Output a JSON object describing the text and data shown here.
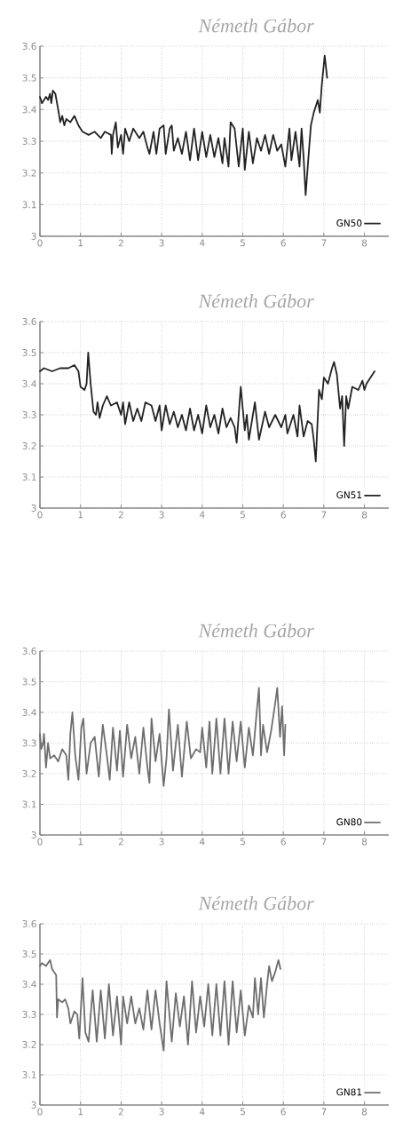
{
  "chart_data": [
    {
      "type": "line",
      "title": "Németh Gábor",
      "xlim": [
        0,
        8.6
      ],
      "ylim": [
        3,
        3.6
      ],
      "xticks": [
        0,
        1,
        2,
        3,
        4,
        5,
        6,
        7,
        8
      ],
      "yticks": [
        3,
        3.1,
        3.2,
        3.3,
        3.4,
        3.5,
        3.6
      ],
      "grid": true,
      "legend": "bottom right",
      "marker": "none",
      "x": [
        0,
        0.05,
        0.1,
        0.15,
        0.2,
        0.25,
        0.28,
        0.32,
        0.38,
        0.45,
        0.5,
        0.55,
        0.6,
        0.65,
        0.75,
        0.85,
        0.95,
        1.05,
        1.2,
        1.35,
        1.5,
        1.6,
        1.75,
        1.77,
        1.8,
        1.87,
        1.92,
        2.0,
        2.05,
        2.1,
        2.2,
        2.3,
        2.45,
        2.55,
        2.65,
        2.7,
        2.8,
        2.87,
        2.95,
        3.05,
        3.1,
        3.2,
        3.25,
        3.3,
        3.4,
        3.5,
        3.6,
        3.7,
        3.8,
        3.9,
        4.0,
        4.1,
        4.2,
        4.3,
        4.4,
        4.5,
        4.55,
        4.65,
        4.7,
        4.8,
        4.9,
        5.0,
        5.05,
        5.15,
        5.25,
        5.35,
        5.45,
        5.55,
        5.65,
        5.75,
        5.85,
        5.95,
        6.05,
        6.15,
        6.2,
        6.3,
        6.4,
        6.45,
        6.5,
        6.55,
        6.62,
        6.68,
        6.75,
        6.85,
        6.9,
        6.95,
        7.02,
        7.08
      ],
      "series": [
        {
          "name": "GN50",
          "color": "#222222",
          "values": [
            3.44,
            3.42,
            3.43,
            3.44,
            3.43,
            3.45,
            3.42,
            3.46,
            3.45,
            3.4,
            3.36,
            3.38,
            3.35,
            3.37,
            3.36,
            3.38,
            3.35,
            3.33,
            3.32,
            3.33,
            3.31,
            3.33,
            3.32,
            3.26,
            3.32,
            3.36,
            3.28,
            3.32,
            3.26,
            3.34,
            3.3,
            3.34,
            3.31,
            3.33,
            3.28,
            3.26,
            3.33,
            3.26,
            3.34,
            3.35,
            3.26,
            3.34,
            3.35,
            3.27,
            3.31,
            3.26,
            3.33,
            3.24,
            3.34,
            3.24,
            3.33,
            3.25,
            3.32,
            3.25,
            3.31,
            3.23,
            3.31,
            3.22,
            3.36,
            3.34,
            3.22,
            3.34,
            3.21,
            3.33,
            3.23,
            3.31,
            3.27,
            3.32,
            3.26,
            3.32,
            3.27,
            3.29,
            3.22,
            3.34,
            3.24,
            3.33,
            3.22,
            3.34,
            3.25,
            3.13,
            3.25,
            3.35,
            3.39,
            3.43,
            3.39,
            3.48,
            3.57,
            3.5
          ]
        }
      ]
    },
    {
      "type": "line",
      "title": "Németh Gábor",
      "xlim": [
        0,
        8.6
      ],
      "ylim": [
        3,
        3.6
      ],
      "xticks": [
        0,
        1,
        2,
        3,
        4,
        5,
        6,
        7,
        8
      ],
      "yticks": [
        3,
        3.1,
        3.2,
        3.3,
        3.4,
        3.5,
        3.6
      ],
      "grid": true,
      "legend": "bottom right",
      "marker": "none",
      "x": [
        0,
        0.1,
        0.3,
        0.5,
        0.7,
        0.85,
        0.95,
        1.0,
        1.1,
        1.15,
        1.19,
        1.25,
        1.32,
        1.38,
        1.42,
        1.47,
        1.55,
        1.65,
        1.75,
        1.9,
        2.0,
        2.05,
        2.1,
        2.2,
        2.3,
        2.4,
        2.5,
        2.6,
        2.75,
        2.85,
        2.95,
        3.0,
        3.1,
        3.2,
        3.3,
        3.4,
        3.5,
        3.6,
        3.7,
        3.8,
        3.9,
        4.0,
        4.1,
        4.2,
        4.3,
        4.4,
        4.5,
        4.6,
        4.7,
        4.8,
        4.85,
        4.95,
        5.05,
        5.1,
        5.15,
        5.3,
        5.4,
        5.55,
        5.65,
        5.8,
        5.95,
        6.05,
        6.1,
        6.25,
        6.35,
        6.4,
        6.5,
        6.6,
        6.7,
        6.75,
        6.8,
        6.88,
        6.95,
        7.0,
        7.1,
        7.2,
        7.25,
        7.32,
        7.4,
        7.45,
        7.5,
        7.55,
        7.6,
        7.7,
        7.85,
        7.95,
        8.0,
        8.05,
        8.25
      ],
      "series": [
        {
          "name": "GN51",
          "color": "#222222",
          "values": [
            3.44,
            3.45,
            3.44,
            3.45,
            3.45,
            3.46,
            3.44,
            3.39,
            3.38,
            3.4,
            3.5,
            3.4,
            3.31,
            3.3,
            3.34,
            3.29,
            3.33,
            3.36,
            3.33,
            3.34,
            3.3,
            3.34,
            3.27,
            3.34,
            3.28,
            3.32,
            3.28,
            3.34,
            3.33,
            3.28,
            3.33,
            3.25,
            3.33,
            3.27,
            3.31,
            3.26,
            3.3,
            3.25,
            3.32,
            3.25,
            3.3,
            3.24,
            3.33,
            3.26,
            3.3,
            3.24,
            3.32,
            3.26,
            3.29,
            3.26,
            3.21,
            3.39,
            3.25,
            3.3,
            3.22,
            3.34,
            3.22,
            3.31,
            3.26,
            3.3,
            3.26,
            3.3,
            3.24,
            3.3,
            3.23,
            3.33,
            3.23,
            3.28,
            3.27,
            3.22,
            3.15,
            3.38,
            3.35,
            3.42,
            3.4,
            3.45,
            3.47,
            3.43,
            3.32,
            3.36,
            3.2,
            3.36,
            3.32,
            3.39,
            3.38,
            3.41,
            3.38,
            3.4,
            3.44
          ]
        }
      ]
    },
    {
      "type": "line",
      "title": "Németh Gábor",
      "xlim": [
        0,
        8.6
      ],
      "ylim": [
        3,
        3.6
      ],
      "xticks": [
        0,
        1,
        2,
        3,
        4,
        5,
        6,
        7,
        8
      ],
      "yticks": [
        3,
        3.1,
        3.2,
        3.3,
        3.4,
        3.5,
        3.6
      ],
      "grid": true,
      "legend": "bottom right",
      "marker": "none",
      "x": [
        0,
        0.03,
        0.08,
        0.1,
        0.15,
        0.2,
        0.25,
        0.35,
        0.45,
        0.55,
        0.65,
        0.7,
        0.75,
        0.8,
        0.87,
        0.95,
        1.02,
        1.07,
        1.15,
        1.25,
        1.35,
        1.45,
        1.55,
        1.65,
        1.72,
        1.8,
        1.9,
        1.97,
        2.05,
        2.15,
        2.25,
        2.35,
        2.45,
        2.55,
        2.65,
        2.7,
        2.75,
        2.85,
        2.95,
        3.05,
        3.12,
        3.18,
        3.28,
        3.4,
        3.5,
        3.62,
        3.72,
        3.85,
        3.95,
        4.0,
        4.1,
        4.18,
        4.25,
        4.35,
        4.45,
        4.55,
        4.65,
        4.75,
        4.85,
        4.95,
        5.05,
        5.15,
        5.25,
        5.35,
        5.4,
        5.45,
        5.5,
        5.6,
        5.7,
        5.8,
        5.85,
        5.92,
        5.97,
        6.02,
        6.05
      ],
      "series": [
        {
          "name": "GN80",
          "color": "#6e6e6e",
          "values": [
            3.33,
            3.28,
            3.3,
            3.33,
            3.22,
            3.3,
            3.25,
            3.26,
            3.24,
            3.28,
            3.26,
            3.18,
            3.33,
            3.4,
            3.26,
            3.18,
            3.35,
            3.38,
            3.2,
            3.3,
            3.32,
            3.19,
            3.36,
            3.26,
            3.18,
            3.35,
            3.21,
            3.34,
            3.19,
            3.36,
            3.25,
            3.32,
            3.2,
            3.35,
            3.22,
            3.17,
            3.38,
            3.24,
            3.33,
            3.16,
            3.25,
            3.41,
            3.21,
            3.36,
            3.19,
            3.37,
            3.25,
            3.28,
            3.27,
            3.35,
            3.22,
            3.37,
            3.2,
            3.38,
            3.2,
            3.38,
            3.2,
            3.37,
            3.24,
            3.37,
            3.22,
            3.35,
            3.26,
            3.41,
            3.48,
            3.26,
            3.36,
            3.27,
            3.34,
            3.43,
            3.48,
            3.32,
            3.42,
            3.26,
            3.36
          ]
        }
      ]
    },
    {
      "type": "line",
      "title": "Németh Gábor",
      "xlim": [
        0,
        8.6
      ],
      "ylim": [
        3,
        3.6
      ],
      "xticks": [
        0,
        1,
        2,
        3,
        4,
        5,
        6,
        7,
        8
      ],
      "yticks": [
        3,
        3.1,
        3.2,
        3.3,
        3.4,
        3.5,
        3.6
      ],
      "grid": true,
      "legend": "bottom right",
      "marker": "none",
      "x": [
        0,
        0.05,
        0.15,
        0.25,
        0.3,
        0.4,
        0.42,
        0.45,
        0.55,
        0.62,
        0.7,
        0.75,
        0.85,
        0.92,
        0.97,
        1.05,
        1.12,
        1.2,
        1.3,
        1.4,
        1.5,
        1.6,
        1.7,
        1.8,
        1.9,
        2.0,
        2.05,
        2.15,
        2.25,
        2.35,
        2.45,
        2.55,
        2.65,
        2.75,
        2.85,
        2.95,
        3.05,
        3.12,
        3.25,
        3.35,
        3.45,
        3.55,
        3.65,
        3.75,
        3.85,
        3.95,
        4.05,
        4.15,
        4.25,
        4.35,
        4.45,
        4.55,
        4.65,
        4.75,
        4.85,
        4.95,
        5.05,
        5.15,
        5.25,
        5.3,
        5.38,
        5.45,
        5.52,
        5.6,
        5.65,
        5.72,
        5.8,
        5.88,
        5.93
      ],
      "series": [
        {
          "name": "GN81",
          "color": "#6e6e6e",
          "values": [
            3.46,
            3.47,
            3.46,
            3.48,
            3.45,
            3.43,
            3.29,
            3.35,
            3.34,
            3.35,
            3.32,
            3.27,
            3.31,
            3.3,
            3.22,
            3.42,
            3.24,
            3.21,
            3.38,
            3.21,
            3.38,
            3.22,
            3.4,
            3.23,
            3.36,
            3.2,
            3.36,
            3.27,
            3.36,
            3.27,
            3.32,
            3.25,
            3.38,
            3.25,
            3.38,
            3.27,
            3.18,
            3.41,
            3.21,
            3.37,
            3.26,
            3.36,
            3.2,
            3.41,
            3.24,
            3.36,
            3.26,
            3.4,
            3.23,
            3.4,
            3.23,
            3.41,
            3.2,
            3.41,
            3.24,
            3.38,
            3.23,
            3.33,
            3.29,
            3.42,
            3.3,
            3.42,
            3.29,
            3.4,
            3.46,
            3.41,
            3.44,
            3.48,
            3.45
          ]
        }
      ]
    }
  ]
}
